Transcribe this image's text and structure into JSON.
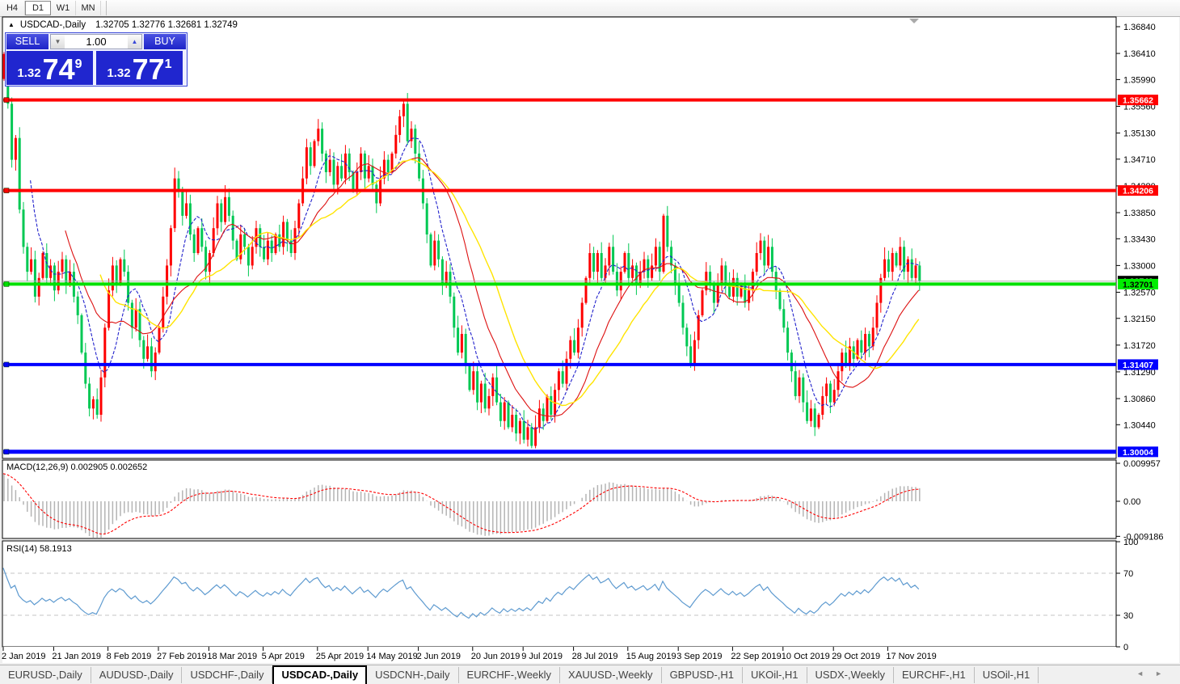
{
  "toolbar": {
    "timeframes": [
      {
        "label": "H4",
        "active": false
      },
      {
        "label": "D1",
        "active": true
      },
      {
        "label": "W1",
        "active": false
      },
      {
        "label": "MN",
        "active": false
      }
    ]
  },
  "chart_header": {
    "collapse_icon": "triangle-up",
    "symbol_title": "USDCAD-,Daily",
    "ohlc_quote": "1.32705 1.32776 1.32681 1.32749"
  },
  "trade_panel": {
    "sell_label": "SELL",
    "buy_label": "BUY",
    "volume": "1.00",
    "sell_price": {
      "big": "1.32",
      "mid": "74",
      "sup": "9"
    },
    "buy_price": {
      "big": "1.32",
      "mid": "77",
      "sup": "1"
    }
  },
  "indicator_labels": {
    "macd": "MACD(12,26,9) 0.002905 0.002652",
    "rsi": "RSI(14) 58.1913"
  },
  "chart_data": {
    "type": "candlestick",
    "symbol": "USDCAD",
    "timeframe": "Daily",
    "first_open": 1.36,
    "closes": [
      1.364,
      1.356,
      1.347,
      1.3505,
      1.339,
      1.333,
      1.329,
      1.331,
      1.325,
      1.328,
      1.332,
      1.328,
      1.33,
      1.326,
      1.329,
      1.331,
      1.327,
      1.329,
      1.325,
      1.322,
      1.316,
      1.311,
      1.307,
      1.3085,
      1.306,
      1.312,
      1.32,
      1.326,
      1.33,
      1.327,
      1.331,
      1.329,
      1.324,
      1.32,
      1.323,
      1.318,
      1.315,
      1.317,
      1.313,
      1.316,
      1.32,
      1.325,
      1.33,
      1.336,
      1.344,
      1.342,
      1.338,
      1.34,
      1.335,
      1.332,
      1.336,
      1.333,
      1.329,
      1.332,
      1.336,
      1.34,
      1.337,
      1.341,
      1.338,
      1.334,
      1.331,
      1.335,
      1.333,
      1.33,
      1.333,
      1.336,
      1.333,
      1.331,
      1.334,
      1.332,
      1.335,
      1.333,
      1.337,
      1.334,
      1.332,
      1.336,
      1.34,
      1.344,
      1.349,
      1.346,
      1.35,
      1.352,
      1.348,
      1.345,
      1.347,
      1.343,
      1.346,
      1.344,
      1.348,
      1.345,
      1.342,
      1.345,
      1.348,
      1.344,
      1.346,
      1.343,
      1.34,
      1.344,
      1.347,
      1.345,
      1.348,
      1.351,
      1.354,
      1.356,
      1.35,
      1.352,
      1.348,
      1.344,
      1.34,
      1.335,
      1.33,
      1.334,
      1.331,
      1.327,
      1.329,
      1.325,
      1.32,
      1.316,
      1.319,
      1.314,
      1.31,
      1.313,
      1.308,
      1.311,
      1.307,
      1.309,
      1.312,
      1.308,
      1.305,
      1.308,
      1.304,
      1.306,
      1.303,
      1.305,
      1.302,
      1.304,
      1.301,
      1.304,
      1.307,
      1.305,
      1.309,
      1.306,
      1.31,
      1.313,
      1.311,
      1.315,
      1.318,
      1.316,
      1.32,
      1.324,
      1.328,
      1.332,
      1.329,
      1.332,
      1.328,
      1.33,
      1.333,
      1.329,
      1.326,
      1.329,
      1.332,
      1.328,
      1.33,
      1.327,
      1.329,
      1.331,
      1.328,
      1.33,
      1.333,
      1.329,
      1.338,
      1.333,
      1.33,
      1.327,
      1.324,
      1.32,
      1.317,
      1.314,
      1.318,
      1.322,
      1.326,
      1.329,
      1.327,
      1.324,
      1.327,
      1.33,
      1.327,
      1.325,
      1.328,
      1.325,
      1.327,
      1.324,
      1.326,
      1.329,
      1.332,
      1.334,
      1.33,
      1.333,
      1.329,
      1.326,
      1.323,
      1.32,
      1.316,
      1.313,
      1.309,
      1.312,
      1.308,
      1.305,
      1.307,
      1.304,
      1.306,
      1.309,
      1.311,
      1.308,
      1.31,
      1.313,
      1.316,
      1.314,
      1.317,
      1.315,
      1.318,
      1.316,
      1.319,
      1.317,
      1.32,
      1.324,
      1.328,
      1.331,
      1.329,
      1.332,
      1.33,
      1.333,
      1.329,
      1.331,
      1.328,
      1.33,
      1.32749
    ],
    "x_dates": [
      {
        "i": 0,
        "label": "2 Jan 2019"
      },
      {
        "i": 13,
        "label": "21 Jan 2019"
      },
      {
        "i": 27,
        "label": "8 Feb 2019"
      },
      {
        "i": 40,
        "label": "27 Feb 2019"
      },
      {
        "i": 53,
        "label": "18 Mar 2019"
      },
      {
        "i": 67,
        "label": "5 Apr 2019"
      },
      {
        "i": 81,
        "label": "25 Apr 2019"
      },
      {
        "i": 94,
        "label": "14 May 2019"
      },
      {
        "i": 107,
        "label": "2 Jun 2019"
      },
      {
        "i": 121,
        "label": "20 Jun 2019"
      },
      {
        "i": 134,
        "label": "9 Jul 2019"
      },
      {
        "i": 147,
        "label": "28 Jul 2019"
      },
      {
        "i": 161,
        "label": "15 Aug 2019"
      },
      {
        "i": 174,
        "label": "3 Sep 2019"
      },
      {
        "i": 188,
        "label": "22 Sep 2019"
      },
      {
        "i": 201,
        "label": "10 Oct 2019"
      },
      {
        "i": 214,
        "label": "29 Oct 2019"
      },
      {
        "i": 228,
        "label": "17 Nov 2019"
      }
    ],
    "y_ticks": [
      "1.36840",
      "1.36410",
      "1.35990",
      "1.35560",
      "1.35130",
      "1.34710",
      "1.34280",
      "1.33850",
      "1.33430",
      "1.33000",
      "1.32570",
      "1.32150",
      "1.31720",
      "1.31290",
      "1.30860",
      "1.30440"
    ],
    "levels": [
      {
        "price": 1.35662,
        "label": "1.35662",
        "line": "#ff0000",
        "bg": "#ff0000",
        "fg": "#ffffff",
        "w": 4
      },
      {
        "price": 1.34206,
        "label": "1.34206",
        "line": "#ff0000",
        "bg": "#ff0000",
        "fg": "#ffffff",
        "w": 4
      },
      {
        "price": 1.31407,
        "label": "1.31407",
        "line": "#0000ff",
        "bg": "#0000ff",
        "fg": "#ffffff",
        "w": 4
      },
      {
        "price": 1.30004,
        "label": "1.30004",
        "line": "#0000ff",
        "bg": "#0000ff",
        "fg": "#ffffff",
        "w": 5
      },
      {
        "price": 1.32701,
        "label": "1.32701",
        "line": "#00e000",
        "bg": "#00ee00",
        "fg": "#000000",
        "w": 4
      }
    ],
    "bid_line": {
      "price": 1.32749,
      "label": "1.32749",
      "bg": "#000000",
      "fg": "#ffffff",
      "line": "#b0b0b0"
    },
    "macd_axis": [
      {
        "v": 0.009957,
        "label": "0.009957"
      },
      {
        "v": 0.0,
        "label": "0.00"
      },
      {
        "v": -0.009186,
        "label": "-0.009186"
      }
    ],
    "rsi_axis": [
      {
        "v": 100,
        "label": "100"
      },
      {
        "v": 70,
        "label": "70"
      },
      {
        "v": 30,
        "label": "30"
      },
      {
        "v": 0,
        "label": "0"
      }
    ],
    "rsi_dashed_levels": [
      70,
      30
    ],
    "indicators": {
      "macd_params": "12,26,9",
      "macd_value": 0.002905,
      "macd_signal_value": 0.002652,
      "rsi_params": "14",
      "rsi_value": 58.1913
    },
    "colors": {
      "up_candle": "#fe0000",
      "down_candle": "#00c853",
      "ma_fast": "#2222cc",
      "ma_mid": "#dd1111",
      "ma_slow": "#ffe400",
      "macd_hist": "#b4b4b4",
      "macd_signal": "#ff0000",
      "rsi_line": "#5f9bd0",
      "pane_bg": "#ffffff",
      "axis_text": "#000000"
    }
  },
  "tabs": {
    "items": [
      {
        "label": "EURUSD-,Daily",
        "active": false
      },
      {
        "label": "AUDUSD-,Daily",
        "active": false
      },
      {
        "label": "USDCHF-,Daily",
        "active": false
      },
      {
        "label": "USDCAD-,Daily",
        "active": true
      },
      {
        "label": "USDCNH-,Daily",
        "active": false
      },
      {
        "label": "EURCHF-,Weekly",
        "active": false
      },
      {
        "label": "XAUUSD-,Weekly",
        "active": false
      },
      {
        "label": "GBPUSD-,H1",
        "active": false
      },
      {
        "label": "UKOil-,H1",
        "active": false
      },
      {
        "label": "USDX-,Weekly",
        "active": false
      },
      {
        "label": "EURCHF-,H1",
        "active": false
      },
      {
        "label": "USOil-,H1",
        "active": false
      }
    ],
    "nav_left": "◄",
    "nav_right": "►"
  }
}
